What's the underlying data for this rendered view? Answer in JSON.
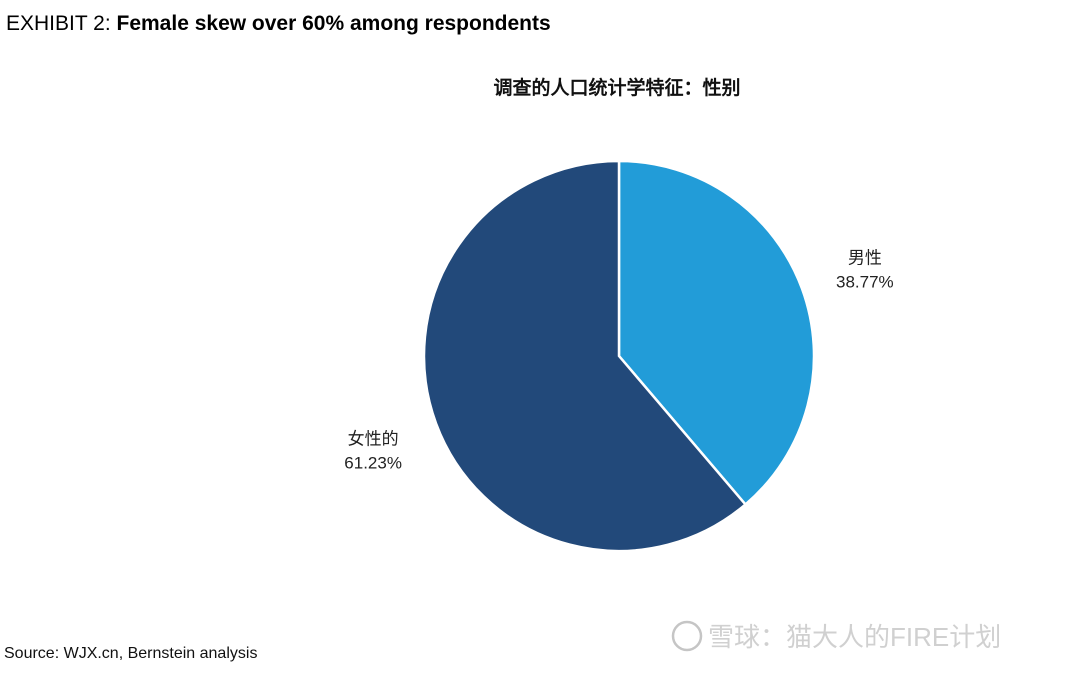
{
  "exhibit_label": "EXHIBIT 2:",
  "headline": "Female skew over 60% among respondents",
  "source": "Source: WJX.cn, Bernstein analysis",
  "watermark": "雪球：猫大人的FIRE计划",
  "chart_data": {
    "type": "pie",
    "title": "调查的人口统计学特征：性别",
    "categories": [
      "男性",
      "女性的"
    ],
    "values": [
      38.77,
      61.23
    ],
    "value_labels": [
      "38.77%",
      "61.23%"
    ],
    "colors": [
      "#229cd8",
      "#22497a"
    ]
  }
}
